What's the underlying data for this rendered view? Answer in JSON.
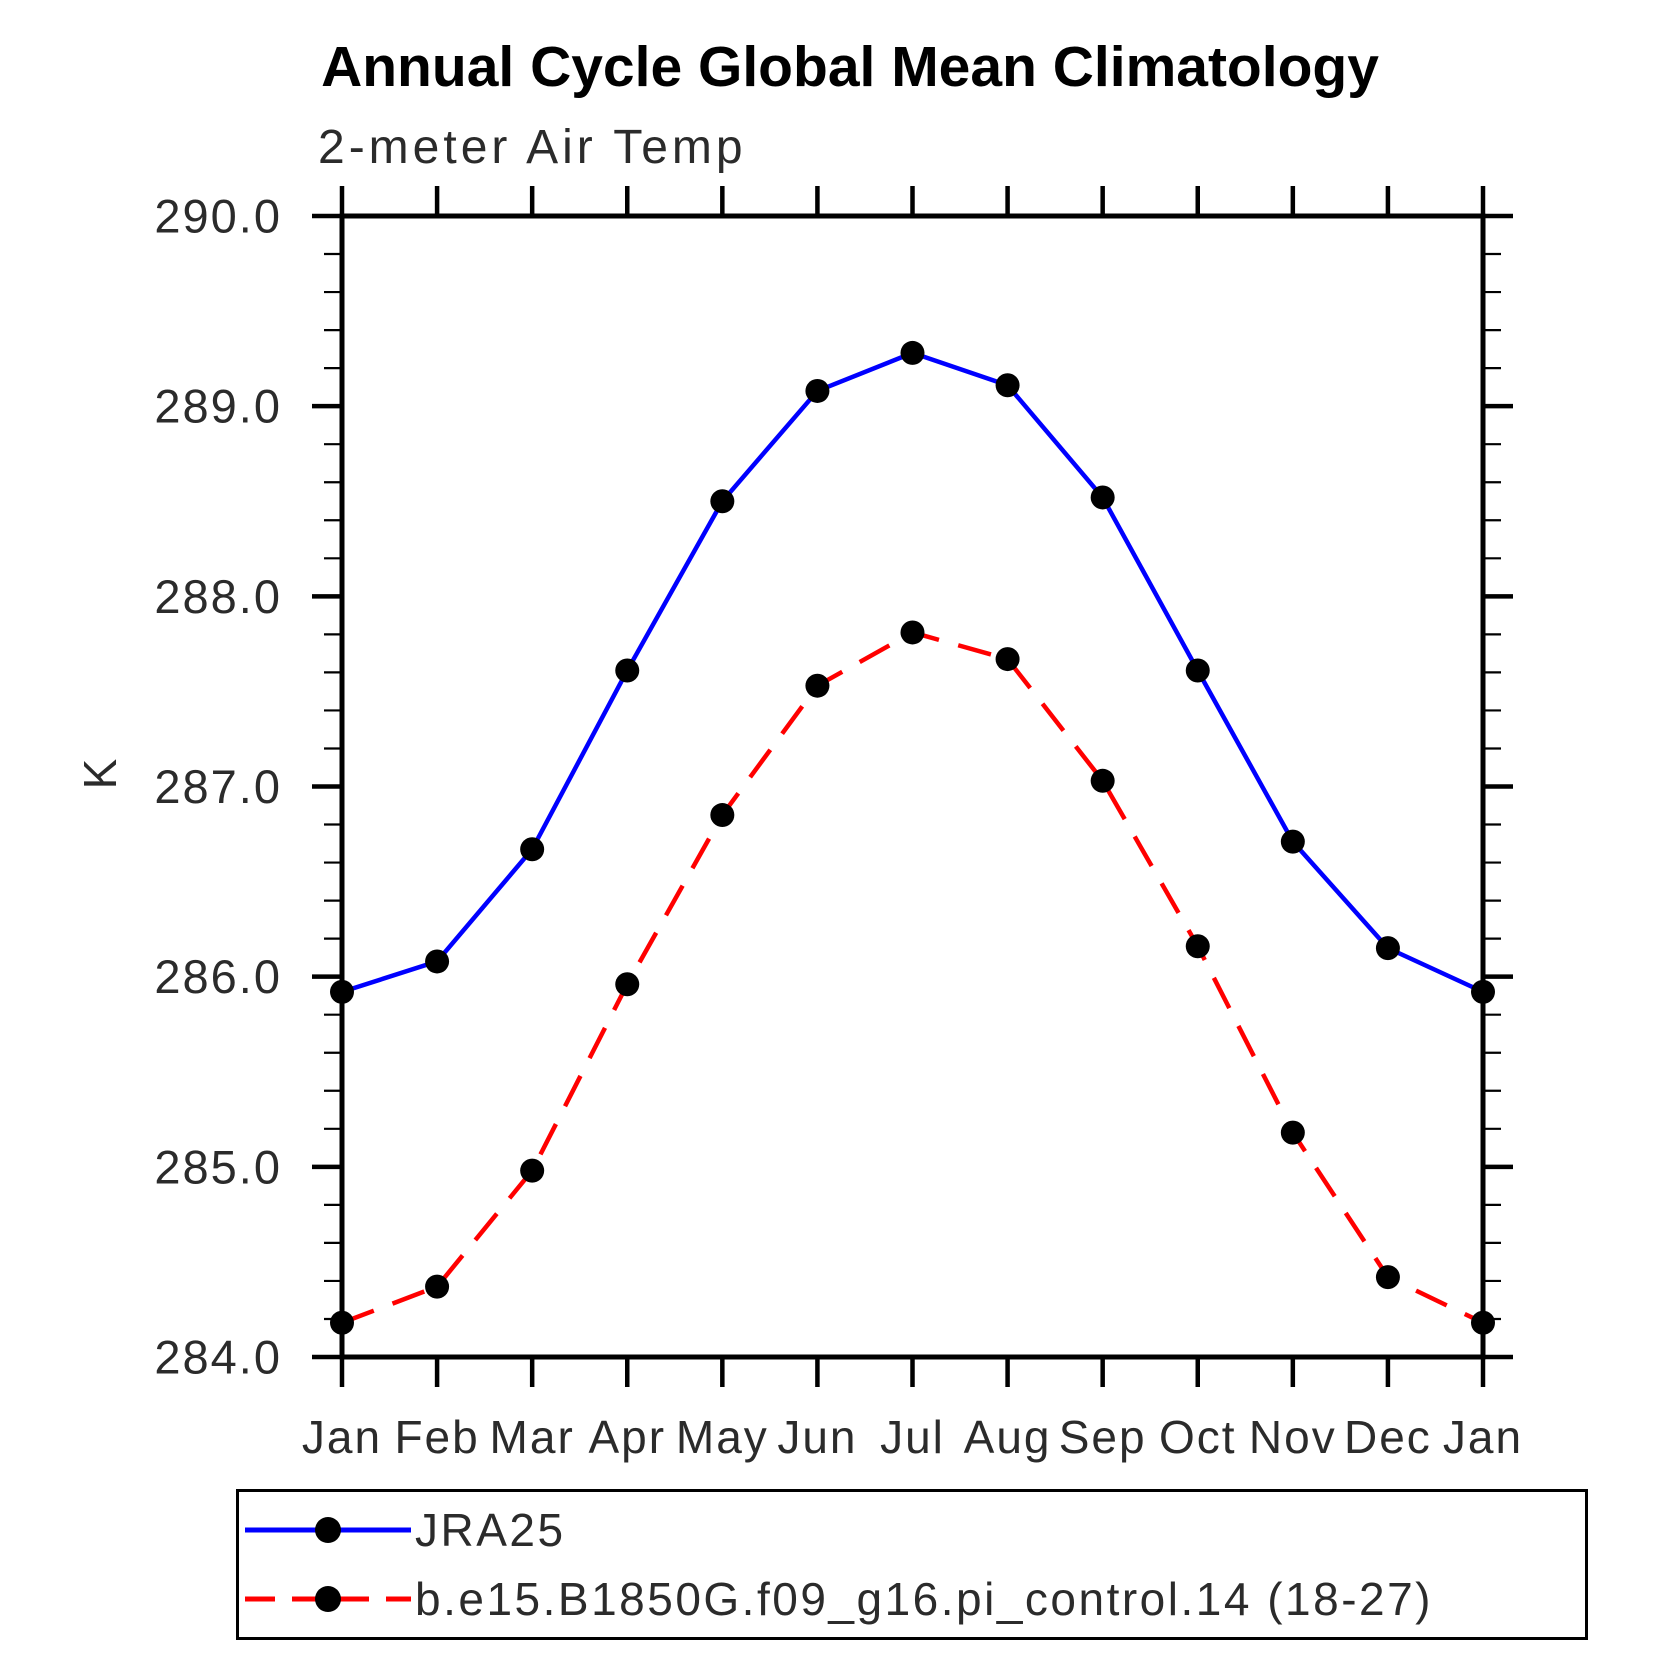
{
  "page": {
    "background": "#ffffff",
    "text_color": "#2b2b2b",
    "axis_color": "#000000"
  },
  "chart": {
    "title": "Annual Cycle Global Mean Climatology",
    "left_string": "2-meter Air Temp",
    "y_axis_label": "K"
  },
  "chart_data": {
    "type": "line",
    "title": "Annual Cycle Global Mean Climatology",
    "subtitle": "2-meter Air Temp",
    "xlabel": "",
    "ylabel": "K",
    "categories": [
      "Jan",
      "Feb",
      "Mar",
      "Apr",
      "May",
      "Jun",
      "Jul",
      "Aug",
      "Sep",
      "Oct",
      "Nov",
      "Dec",
      "Jan"
    ],
    "ylim": [
      284.0,
      290.0
    ],
    "y_major_tick_labels": [
      "284.0",
      "285.0",
      "286.0",
      "287.0",
      "288.0",
      "289.0",
      "290.0"
    ],
    "y_minor_step": 0.2,
    "grid": false,
    "tick_direction": "out",
    "legend_position": "bottom-left-box",
    "series": [
      {
        "name": "JRA25",
        "color": "#0000ff",
        "line_style": "solid",
        "marker": "filled-circle",
        "marker_color": "#000000",
        "values": [
          285.92,
          286.08,
          286.67,
          287.61,
          288.5,
          289.08,
          289.28,
          289.11,
          288.52,
          287.61,
          286.71,
          286.15,
          285.92
        ]
      },
      {
        "name": "b.e15.B1850G.f09_g16.pi_control.14 (18-27)",
        "color": "#ff0000",
        "line_style": "dashed",
        "marker": "filled-circle",
        "marker_color": "#000000",
        "values": [
          284.18,
          284.37,
          284.98,
          285.96,
          286.85,
          287.53,
          287.81,
          287.67,
          287.03,
          286.16,
          285.18,
          284.42,
          284.18
        ]
      }
    ]
  }
}
